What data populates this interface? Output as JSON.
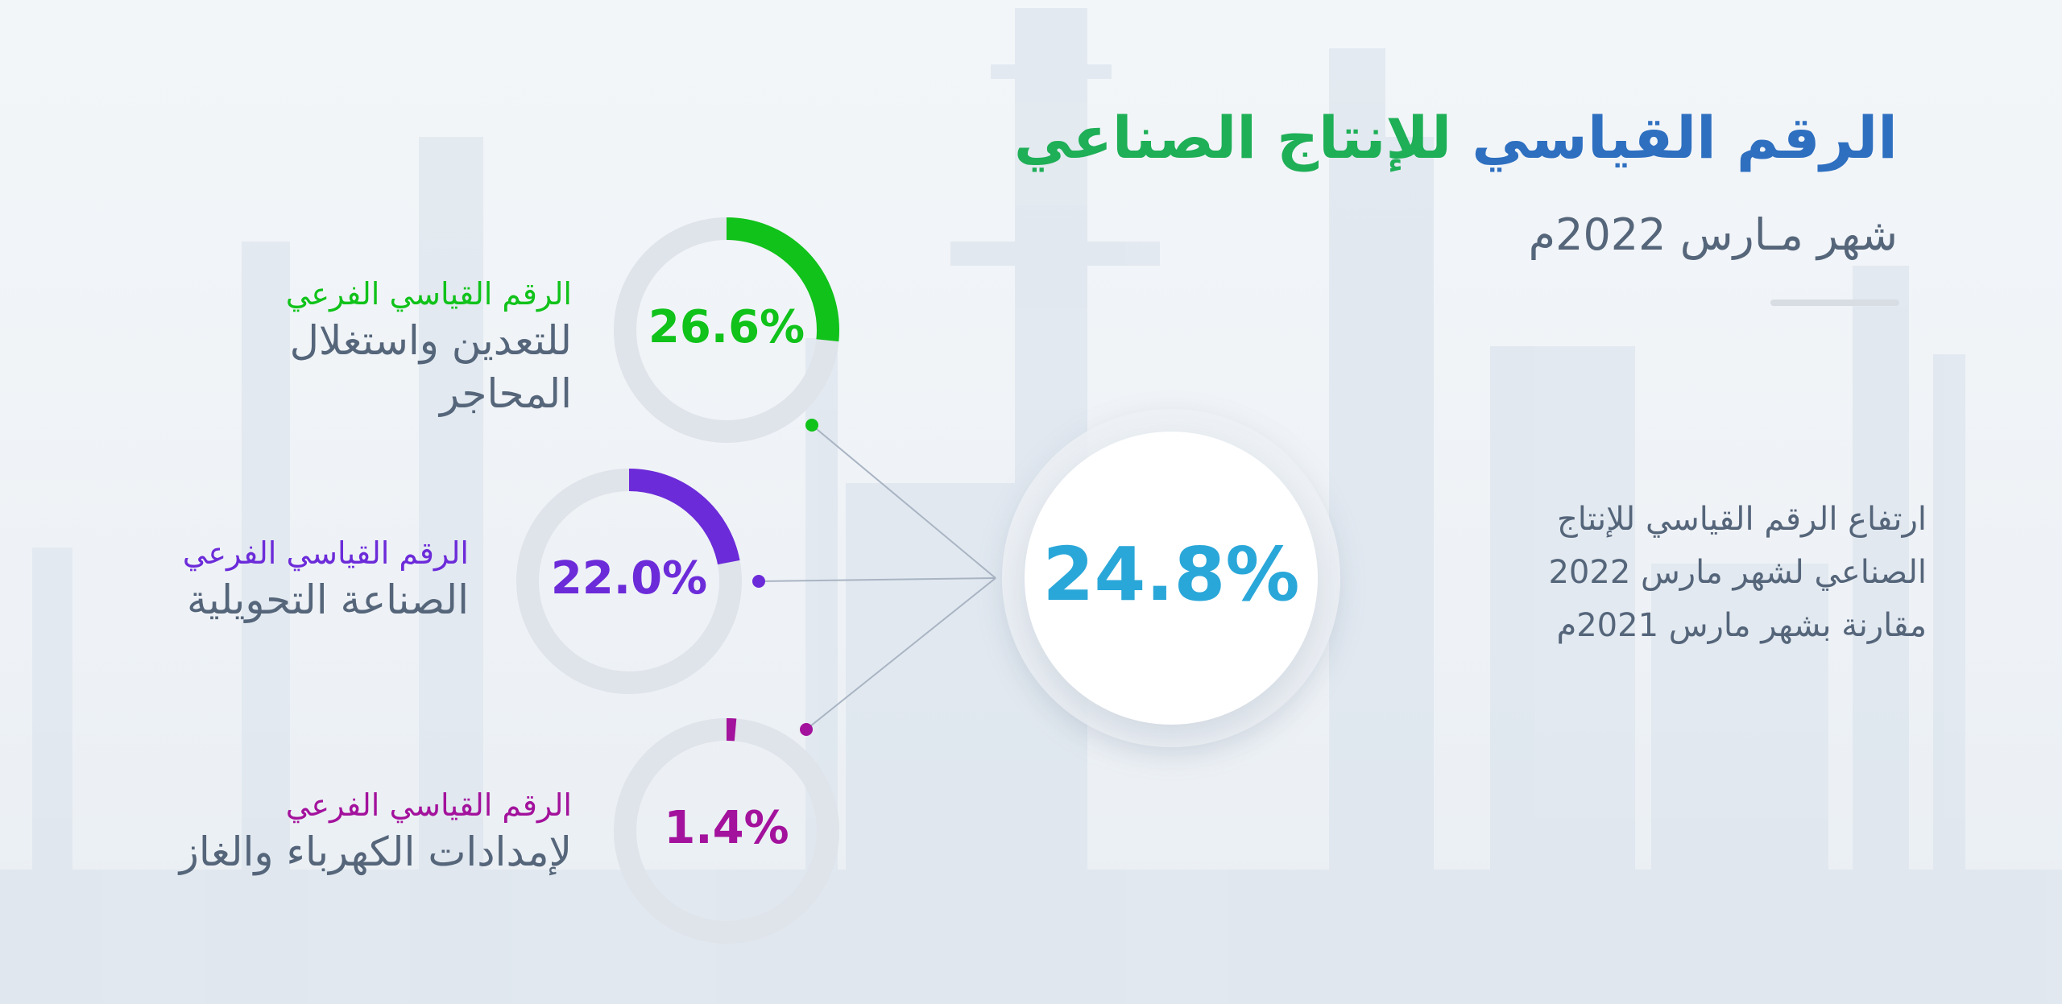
{
  "header": {
    "title_part1": "الرقم القياسي",
    "title_part2": "للإنتاج الصناعي",
    "subtitle": "شهر مـارس 2022م"
  },
  "headline": {
    "value": "24.8%",
    "description": "ارتفاع الرقم القياسي للإنتاج الصناعي لشهر مارس 2022 مقارنة بشهر مارس 2021م"
  },
  "chart_data": {
    "type": "donut",
    "series": [
      {
        "percent": 26.6,
        "label": "26.6%",
        "label_top": "الرقم القياسي الفرعي",
        "label_bottom": "للتعدين واستغلال المحاجر",
        "color": "#10c21a"
      },
      {
        "percent": 22.0,
        "label": "22.0%",
        "label_top": "الرقم القياسي الفرعي",
        "label_bottom": "الصناعة التحويلية",
        "color": "#6c2bd9"
      },
      {
        "percent": 1.4,
        "label": "1.4%",
        "label_top": "الرقم القياسي الفرعي",
        "label_bottom": "لإمدادات الكهرباء والغاز",
        "color": "#a3129c"
      }
    ]
  },
  "colors": {
    "track": "#dfe3ea",
    "connector": "#a9b4c3",
    "headline": "#2aa7d9",
    "text": "#55657a"
  }
}
